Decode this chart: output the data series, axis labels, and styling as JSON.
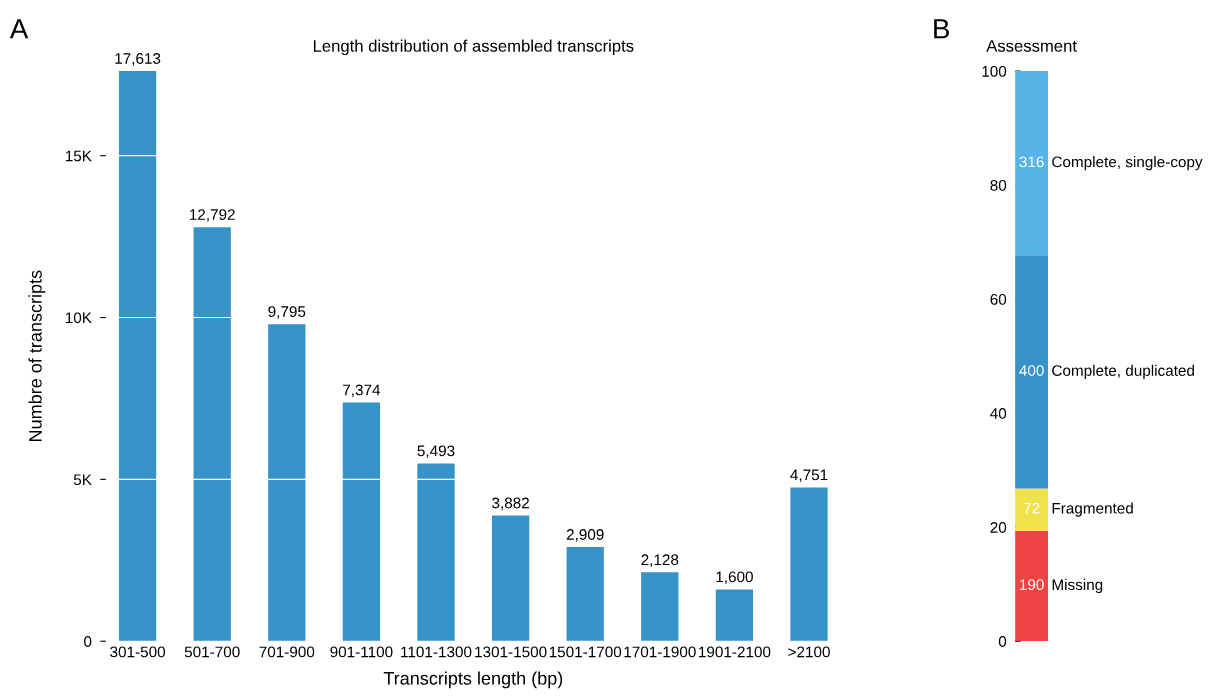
{
  "chart_data": [
    {
      "type": "bar",
      "title": "Length distribution of assembled transcripts",
      "xlabel": "Transcripts length (bp)",
      "ylabel": "Numbre of transcripts",
      "annotations": [
        "A"
      ],
      "categories": [
        "301-500",
        "501-700",
        "701-900",
        "901-1100",
        "1101-1300",
        "1301-1500",
        "1501-1700",
        "1701-1900",
        "1901-2100",
        ">2100"
      ],
      "values": [
        17613,
        12792,
        9795,
        7374,
        5493,
        3882,
        2909,
        2128,
        1600,
        4751
      ],
      "value_labels": [
        "17,613",
        "12,792",
        "9,795",
        "7,374",
        "5,493",
        "3,882",
        "2,909",
        "2,128",
        "1,600",
        "4,751"
      ],
      "color": "#3692c7",
      "ylim": [
        0,
        17613
      ],
      "yticks": [
        0,
        {
          "value": 5000,
          "label": "5K"
        },
        {
          "value": 10000,
          "label": "10K"
        },
        {
          "value": 15000,
          "label": "15K"
        }
      ],
      "grid": "y",
      "legend": false
    },
    {
      "type": "bar",
      "stacked": true,
      "title": "Assessment",
      "annotations": [
        "B",
        "190",
        "72",
        "400",
        "316"
      ],
      "categories": [
        null
      ],
      "ylim": [
        0,
        100
      ],
      "yticks": [
        0,
        20,
        40,
        60,
        80,
        100
      ],
      "legend": false,
      "series": [
        {
          "name": "Missing",
          "color": "#f04444",
          "values": [
            19.4
          ]
        },
        {
          "name": "Fragmented",
          "color": "#efe24a",
          "values": [
            7.4
          ]
        },
        {
          "name": "Complete, duplicated",
          "color": "#3692c7",
          "values": [
            40.9
          ]
        },
        {
          "name": "Complete, single-copy",
          "color": "#58b3e6",
          "values": [
            32.3
          ]
        }
      ]
    }
  ]
}
